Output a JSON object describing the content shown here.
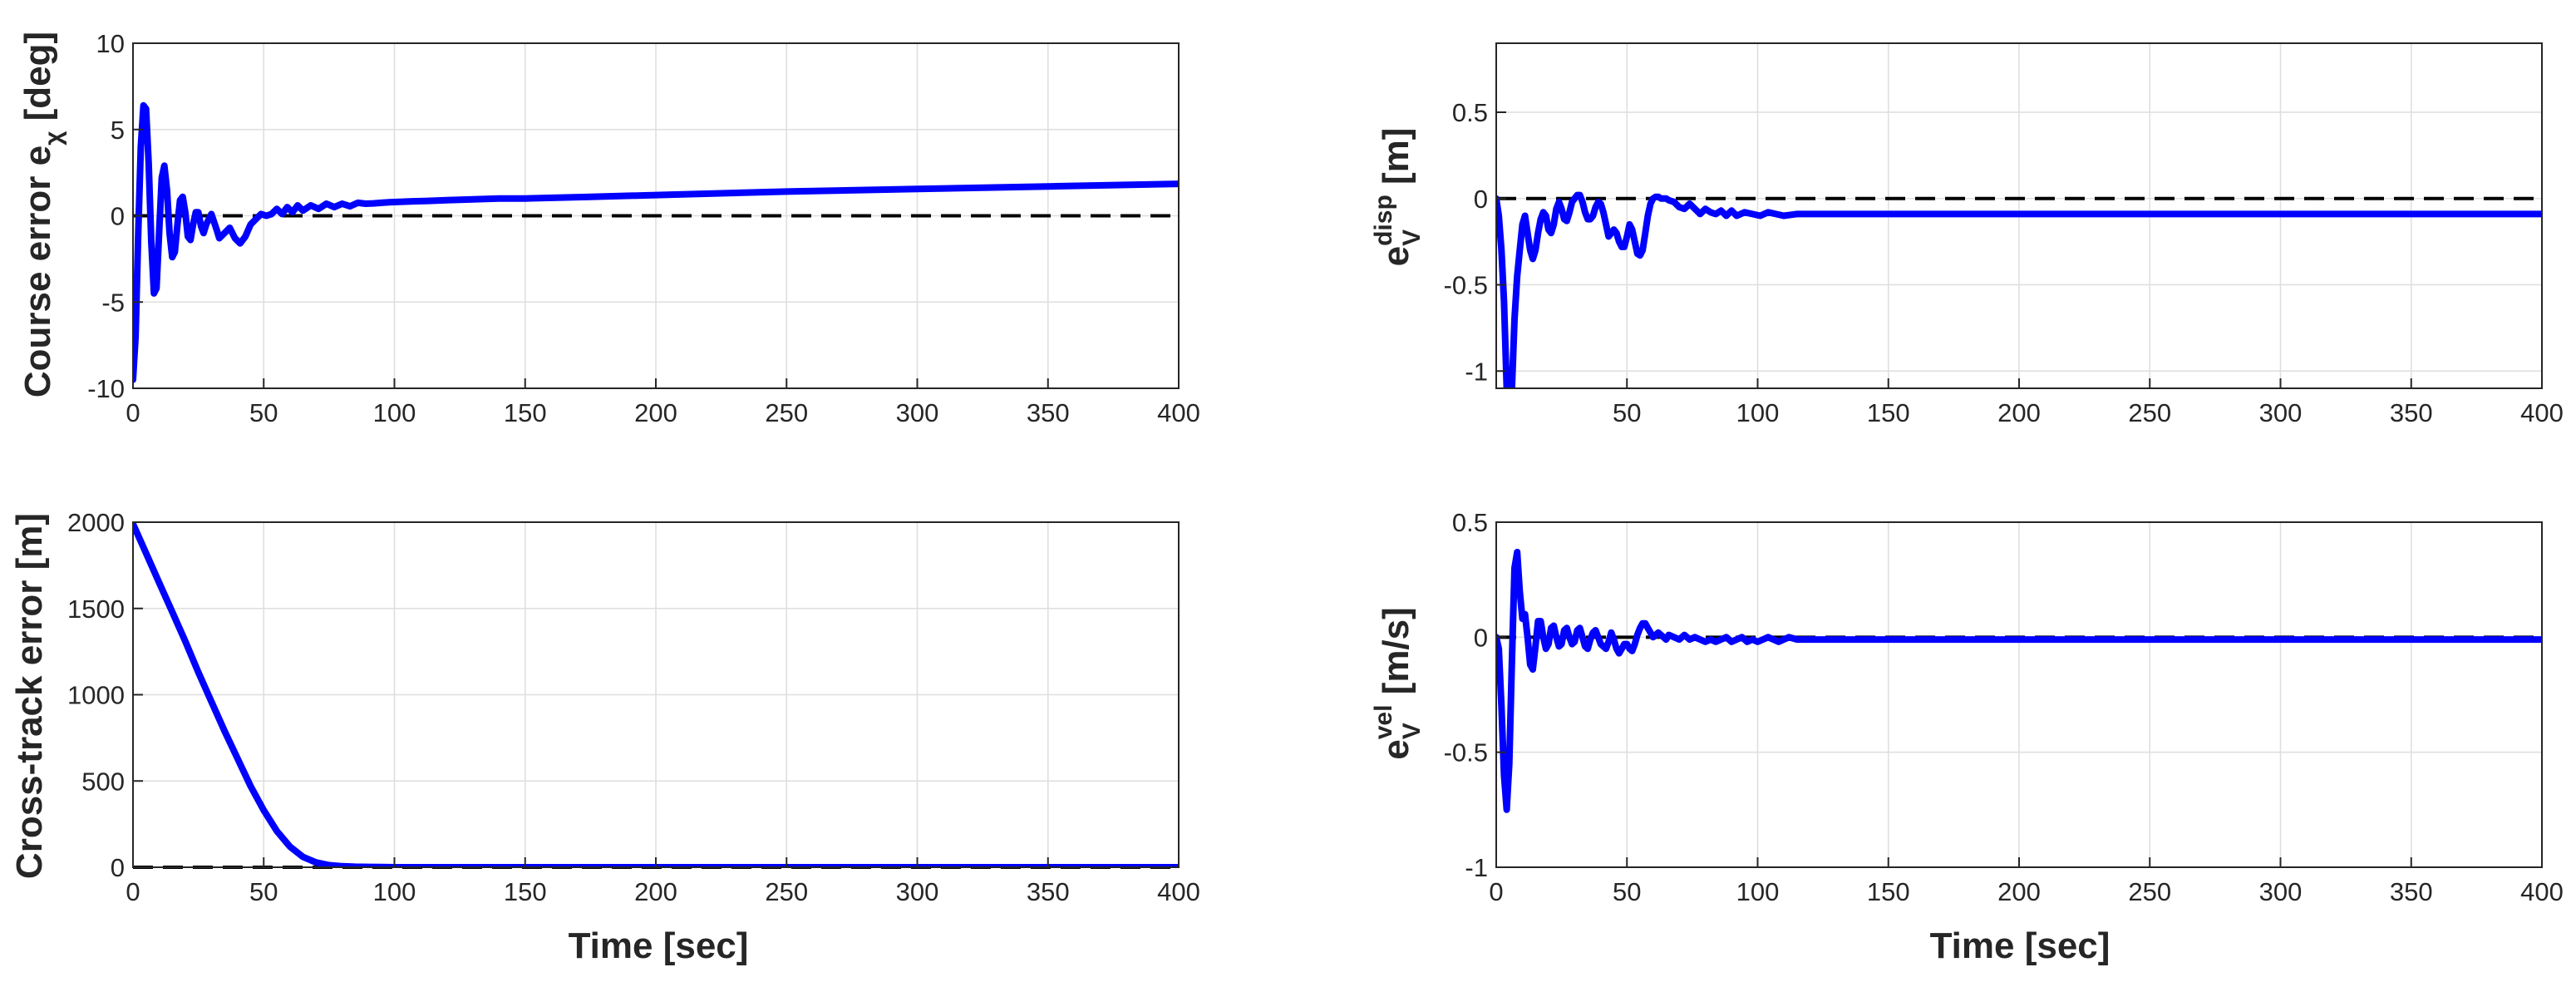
{
  "figure": {
    "background": "#ffffff",
    "line_color": "#0000ff",
    "reference_color": "#000000",
    "grid_color": "#dedede"
  },
  "chart_data": [
    {
      "type": "line",
      "id": "course-error",
      "ylabel": {
        "main": "Course error e",
        "sub": "χ",
        "tail": " [deg]"
      },
      "xlabel": "",
      "xlim": [
        0,
        400
      ],
      "ylim": [
        -10,
        10
      ],
      "xticks": [
        0,
        50,
        100,
        150,
        200,
        250,
        300,
        350,
        400
      ],
      "xtick_labels": [
        "0",
        "50",
        "100",
        "150",
        "200",
        "250",
        "300",
        "350",
        "400"
      ],
      "yticks": [
        -10,
        -5,
        0,
        5,
        10
      ],
      "ytick_labels": [
        "-10",
        "-5",
        "0",
        "5",
        "10"
      ],
      "grid": true,
      "reference_line": 0,
      "series": [
        {
          "color": "#0000ff",
          "x": [
            0,
            1,
            2,
            3,
            4,
            5,
            6,
            7,
            8,
            9,
            10,
            11,
            12,
            13,
            14,
            15,
            16,
            17,
            18,
            19,
            20,
            21,
            22,
            23,
            24,
            25,
            26,
            27,
            28,
            30,
            32,
            33,
            35,
            37,
            39,
            41,
            43,
            45,
            47,
            49,
            51,
            53,
            55,
            57,
            59,
            61,
            63,
            65,
            68,
            71,
            74,
            77,
            80,
            83,
            86,
            89,
            92,
            95,
            98,
            101,
            104,
            107,
            110,
            115,
            120,
            125,
            130,
            140,
            150,
            175,
            200,
            250,
            300,
            350,
            400
          ],
          "y": [
            -9.5,
            -7,
            -1,
            4,
            6.4,
            6.2,
            3,
            -1.5,
            -4.5,
            -4.2,
            -1,
            2.2,
            2.9,
            1.5,
            -1,
            -2.4,
            -2.1,
            -0.5,
            0.9,
            1.1,
            0.2,
            -1.2,
            -1.4,
            -0.5,
            0.2,
            0.2,
            -0.6,
            -1.0,
            -0.5,
            0.1,
            -0.8,
            -1.3,
            -1.0,
            -0.7,
            -1.3,
            -1.6,
            -1.2,
            -0.5,
            -0.2,
            0.1,
            0.0,
            0.1,
            0.4,
            0.1,
            0.5,
            0.2,
            0.6,
            0.3,
            0.6,
            0.4,
            0.7,
            0.5,
            0.7,
            0.55,
            0.75,
            0.7,
            0.72,
            0.75,
            0.78,
            0.8,
            0.82,
            0.84,
            0.85,
            0.87,
            0.9,
            0.93,
            0.95,
            1.0,
            1.0,
            1.1,
            1.2,
            1.4,
            1.55,
            1.7,
            1.85
          ]
        }
      ]
    },
    {
      "type": "line",
      "id": "disp-error",
      "ylabel": {
        "main": "e",
        "sub": "V",
        "sup": "disp",
        "tail": " [m]"
      },
      "xlabel": "",
      "xlim": [
        0,
        400
      ],
      "ylim": [
        -1.1,
        0.9
      ],
      "xticks": [
        50,
        100,
        150,
        200,
        250,
        300,
        350,
        400
      ],
      "xtick_labels": [
        "50",
        "100",
        "150",
        "200",
        "250",
        "300",
        "350",
        "400"
      ],
      "yticks": [
        -1,
        -0.5,
        0,
        0.5
      ],
      "ytick_labels": [
        "-1",
        "-0.5",
        "0",
        "0.5"
      ],
      "grid": true,
      "reference_line": 0,
      "series": [
        {
          "color": "#0000ff",
          "x": [
            0,
            1,
            2,
            3,
            4,
            5,
            6,
            7,
            8,
            9,
            10,
            11,
            12,
            13,
            14,
            15,
            16,
            17,
            18,
            19,
            20,
            21,
            22,
            23,
            24,
            25,
            26,
            27,
            28,
            29,
            30,
            31,
            32,
            33,
            34,
            35,
            36,
            37,
            38,
            39,
            40,
            41,
            42,
            43,
            44,
            45,
            46,
            47,
            48,
            49,
            50,
            51,
            52,
            53,
            54,
            55,
            56,
            57,
            58,
            59,
            60,
            61,
            62,
            63,
            64,
            65,
            66,
            68,
            70,
            72,
            74,
            76,
            78,
            80,
            82,
            84,
            86,
            88,
            90,
            92,
            95,
            98,
            101,
            104,
            107,
            110,
            115,
            120,
            130,
            140,
            150,
            175,
            200,
            250,
            300,
            350,
            400
          ],
          "y": [
            0,
            -0.1,
            -0.3,
            -0.6,
            -1.1,
            -1.15,
            -1.1,
            -0.7,
            -0.45,
            -0.3,
            -0.15,
            -0.1,
            -0.2,
            -0.3,
            -0.35,
            -0.3,
            -0.2,
            -0.12,
            -0.08,
            -0.1,
            -0.18,
            -0.2,
            -0.15,
            -0.06,
            -0.02,
            -0.06,
            -0.12,
            -0.13,
            -0.08,
            -0.02,
            0.0,
            0.02,
            0.02,
            -0.02,
            -0.08,
            -0.12,
            -0.12,
            -0.1,
            -0.05,
            -0.02,
            -0.03,
            -0.08,
            -0.15,
            -0.22,
            -0.2,
            -0.18,
            -0.2,
            -0.25,
            -0.28,
            -0.28,
            -0.22,
            -0.15,
            -0.18,
            -0.25,
            -0.32,
            -0.33,
            -0.3,
            -0.2,
            -0.1,
            -0.03,
            0.0,
            0.01,
            0.01,
            0.0,
            0.0,
            0.0,
            -0.01,
            -0.02,
            -0.05,
            -0.06,
            -0.03,
            -0.06,
            -0.09,
            -0.06,
            -0.08,
            -0.09,
            -0.07,
            -0.1,
            -0.07,
            -0.1,
            -0.08,
            -0.09,
            -0.1,
            -0.08,
            -0.09,
            -0.1,
            -0.09,
            -0.09,
            -0.09,
            -0.09,
            -0.09,
            -0.09,
            -0.09,
            -0.09,
            -0.09,
            -0.09,
            -0.09
          ]
        }
      ]
    },
    {
      "type": "line",
      "id": "cross-track-error",
      "ylabel": {
        "main": "Cross-track error [m]"
      },
      "xlabel": "Time [sec]",
      "xlim": [
        0,
        400
      ],
      "ylim": [
        0,
        2000
      ],
      "xticks": [
        0,
        50,
        100,
        150,
        200,
        250,
        300,
        350,
        400
      ],
      "xtick_labels": [
        "0",
        "50",
        "100",
        "150",
        "200",
        "250",
        "300",
        "350",
        "400"
      ],
      "yticks": [
        0,
        500,
        1000,
        1500,
        2000
      ],
      "ytick_labels": [
        "0",
        "500",
        "1000",
        "1500",
        "2000"
      ],
      "grid": true,
      "reference_line": 0,
      "series": [
        {
          "color": "#0000ff",
          "x": [
            0,
            5,
            10,
            15,
            20,
            25,
            30,
            35,
            40,
            45,
            50,
            55,
            60,
            65,
            70,
            75,
            80,
            85,
            90,
            95,
            100,
            110,
            125,
            150,
            200,
            250,
            300,
            350,
            400
          ],
          "y": [
            1990,
            1820,
            1650,
            1480,
            1310,
            1130,
            960,
            790,
            630,
            470,
            330,
            210,
            120,
            60,
            28,
            12,
            6,
            3,
            2,
            1,
            0,
            0,
            0,
            0,
            0,
            0,
            0,
            0,
            0
          ]
        }
      ]
    },
    {
      "type": "line",
      "id": "vel-error",
      "ylabel": {
        "main": "e",
        "sub": "V",
        "sup": "vel",
        "tail": " [m/s]"
      },
      "xlabel": "Time [sec]",
      "xlim": [
        0,
        400
      ],
      "ylim": [
        -1,
        0.5
      ],
      "xticks": [
        0,
        50,
        100,
        150,
        200,
        250,
        300,
        350,
        400
      ],
      "xtick_labels": [
        "0",
        "50",
        "100",
        "150",
        "200",
        "250",
        "300",
        "350",
        "400"
      ],
      "yticks": [
        -1,
        -0.5,
        0,
        0.5
      ],
      "ytick_labels": [
        "-1",
        "-0.5",
        "0",
        "0.5"
      ],
      "grid": true,
      "reference_line": 0,
      "series": [
        {
          "color": "#0000ff",
          "x": [
            0,
            1,
            2,
            3,
            4,
            5,
            6,
            7,
            8,
            9,
            10,
            11,
            12,
            13,
            14,
            15,
            16,
            17,
            18,
            19,
            20,
            21,
            22,
            23,
            24,
            25,
            26,
            27,
            28,
            29,
            30,
            31,
            32,
            33,
            34,
            35,
            36,
            37,
            38,
            39,
            40,
            41,
            42,
            43,
            44,
            45,
            46,
            47,
            48,
            49,
            50,
            51,
            52,
            53,
            54,
            55,
            56,
            57,
            58,
            59,
            60,
            61,
            62,
            63,
            64,
            65,
            66,
            68,
            70,
            72,
            74,
            76,
            78,
            80,
            82,
            84,
            86,
            88,
            90,
            92,
            94,
            96,
            98,
            100,
            102,
            104,
            106,
            108,
            110,
            112,
            115,
            120,
            130,
            150,
            200,
            250,
            300,
            350,
            400
          ],
          "y": [
            0,
            -0.05,
            -0.3,
            -0.6,
            -0.75,
            -0.55,
            -0.1,
            0.3,
            0.37,
            0.2,
            0.08,
            0.1,
            0.0,
            -0.12,
            -0.14,
            -0.04,
            0.07,
            0.07,
            0.0,
            -0.05,
            -0.03,
            0.04,
            0.05,
            0.0,
            -0.04,
            -0.03,
            0.03,
            0.04,
            0.0,
            -0.03,
            -0.02,
            0.03,
            0.04,
            0.0,
            -0.04,
            -0.05,
            -0.01,
            0.02,
            0.03,
            0.0,
            -0.03,
            -0.04,
            -0.05,
            -0.02,
            0.02,
            -0.01,
            -0.05,
            -0.07,
            -0.05,
            -0.03,
            -0.03,
            -0.05,
            -0.06,
            -0.03,
            0.01,
            0.04,
            0.06,
            0.06,
            0.04,
            0.02,
            0.0,
            0.01,
            0.02,
            0.01,
            0.0,
            -0.01,
            0.01,
            0.0,
            -0.01,
            0.01,
            -0.01,
            0.0,
            -0.01,
            -0.02,
            -0.01,
            -0.02,
            -0.01,
            0.0,
            -0.02,
            -0.01,
            0.0,
            -0.02,
            -0.01,
            -0.02,
            -0.01,
            0.0,
            -0.01,
            -0.02,
            -0.01,
            0.0,
            -0.01,
            -0.01,
            -0.01,
            -0.01,
            -0.01,
            -0.01,
            -0.01,
            -0.01,
            -0.01
          ]
        }
      ]
    }
  ]
}
